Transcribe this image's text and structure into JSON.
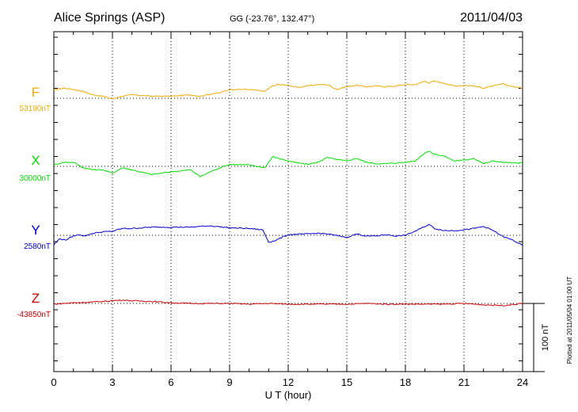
{
  "header": {
    "station": "Alice Springs (ASP)",
    "coords": "GG (-23.76°, 132.47°)",
    "date": "2011/04/03"
  },
  "footer_note": "Plotted at 2011/05/04 01:00 UT",
  "scale_label": "100 nT",
  "colors": {
    "F": "#f5a800",
    "X": "#00dd00",
    "Y": "#0000cc",
    "Z": "#cc0000"
  },
  "chart_data": {
    "type": "line",
    "xlabel": "U T (hour)",
    "xlim": [
      0,
      24
    ],
    "xticks": [
      0,
      3,
      6,
      9,
      12,
      15,
      18,
      21,
      24
    ],
    "scale_bar_nT": 100,
    "grid": true,
    "series": [
      {
        "name": "F",
        "baseline_label": "53190nT",
        "baseline": 53190,
        "x": [
          0,
          0.5,
          1,
          1.5,
          2,
          2.5,
          3,
          3.5,
          4,
          5,
          6,
          7,
          7.5,
          8,
          8.5,
          9,
          10,
          10.8,
          11.2,
          11.5,
          12,
          12.5,
          13,
          13.5,
          14,
          14.5,
          15,
          15.5,
          16,
          16.5,
          17,
          17.5,
          18,
          18.5,
          19,
          19.2,
          19.5,
          20,
          20.5,
          21,
          21.5,
          22,
          22.5,
          23,
          23.5,
          24
        ],
        "values": [
          53202,
          53205,
          53203,
          53200,
          53195,
          53193,
          53189,
          53193,
          53195,
          53193,
          53193,
          53195,
          53193,
          53196,
          53198,
          53203,
          53203,
          53200,
          53208,
          53210,
          53209,
          53206,
          53208,
          53210,
          53210,
          53203,
          53207,
          53209,
          53207,
          53208,
          53207,
          53208,
          53210,
          53210,
          53215,
          53213,
          53215,
          53212,
          53208,
          53209,
          53208,
          53205,
          53208,
          53211,
          53207,
          53205
        ]
      },
      {
        "name": "X",
        "baseline_label": "30000nT",
        "baseline": 30000,
        "x": [
          0,
          0.5,
          1,
          1.5,
          2,
          2.5,
          3,
          3.5,
          4,
          5,
          5.5,
          6,
          7,
          7.5,
          8,
          8.5,
          9,
          10,
          10.8,
          11.2,
          11.5,
          12,
          12.5,
          13,
          13.5,
          14,
          14.5,
          15,
          15.5,
          16,
          16.5,
          17,
          17.5,
          18,
          18.5,
          19,
          19.2,
          19.5,
          20,
          20.5,
          21,
          21.5,
          22,
          22.5,
          23,
          23.5,
          24
        ],
        "values": [
          30002,
          30006,
          30006,
          29998,
          29995,
          29995,
          29990,
          29998,
          29995,
          29988,
          29990,
          29992,
          29995,
          29985,
          29992,
          29998,
          30003,
          30002,
          29998,
          30014,
          30012,
          30008,
          30005,
          30003,
          30006,
          30013,
          30010,
          30008,
          30012,
          30006,
          30004,
          30004,
          30005,
          30006,
          30008,
          30020,
          30022,
          30018,
          30015,
          30008,
          30009,
          30012,
          30004,
          30008,
          30006,
          30005,
          30005
        ]
      },
      {
        "name": "Y",
        "baseline_label": "2580nT",
        "baseline": 2580,
        "x": [
          0,
          0.3,
          0.6,
          1,
          1.3,
          1.6,
          2,
          2.5,
          3,
          3.5,
          4,
          5,
          6,
          7,
          8,
          9,
          10,
          10.7,
          11,
          11.3,
          12,
          13,
          13.5,
          14,
          15,
          15.5,
          16,
          16.5,
          17,
          17.5,
          18,
          18.5,
          19,
          19.2,
          19.5,
          20,
          20.5,
          21,
          21.5,
          22,
          22.5,
          23,
          23.5,
          24
        ],
        "values": [
          2566,
          2575,
          2573,
          2579,
          2581,
          2579,
          2583,
          2585,
          2586,
          2590,
          2590,
          2592,
          2592,
          2592,
          2594,
          2591,
          2590,
          2588,
          2570,
          2572,
          2581,
          2582,
          2583,
          2582,
          2577,
          2582,
          2579,
          2579,
          2581,
          2579,
          2580,
          2586,
          2593,
          2596,
          2590,
          2587,
          2587,
          2588,
          2590,
          2593,
          2587,
          2578,
          2573,
          2565
        ]
      },
      {
        "name": "Z",
        "baseline_label": "-43850nT",
        "baseline": -43850,
        "x": [
          0,
          1,
          2,
          3,
          3.5,
          4,
          5,
          6,
          7,
          8,
          9,
          10,
          11,
          12,
          13,
          14,
          15,
          16,
          17,
          18,
          19,
          20,
          21,
          22,
          23,
          24
        ],
        "values": [
          -43851,
          -43849,
          -43848,
          -43846,
          -43845,
          -43846,
          -43847,
          -43849,
          -43850,
          -43850,
          -43850,
          -43851,
          -43850,
          -43851,
          -43851,
          -43851,
          -43851,
          -43850,
          -43851,
          -43851,
          -43851,
          -43851,
          -43850,
          -43852,
          -43853,
          -43850
        ]
      }
    ]
  }
}
